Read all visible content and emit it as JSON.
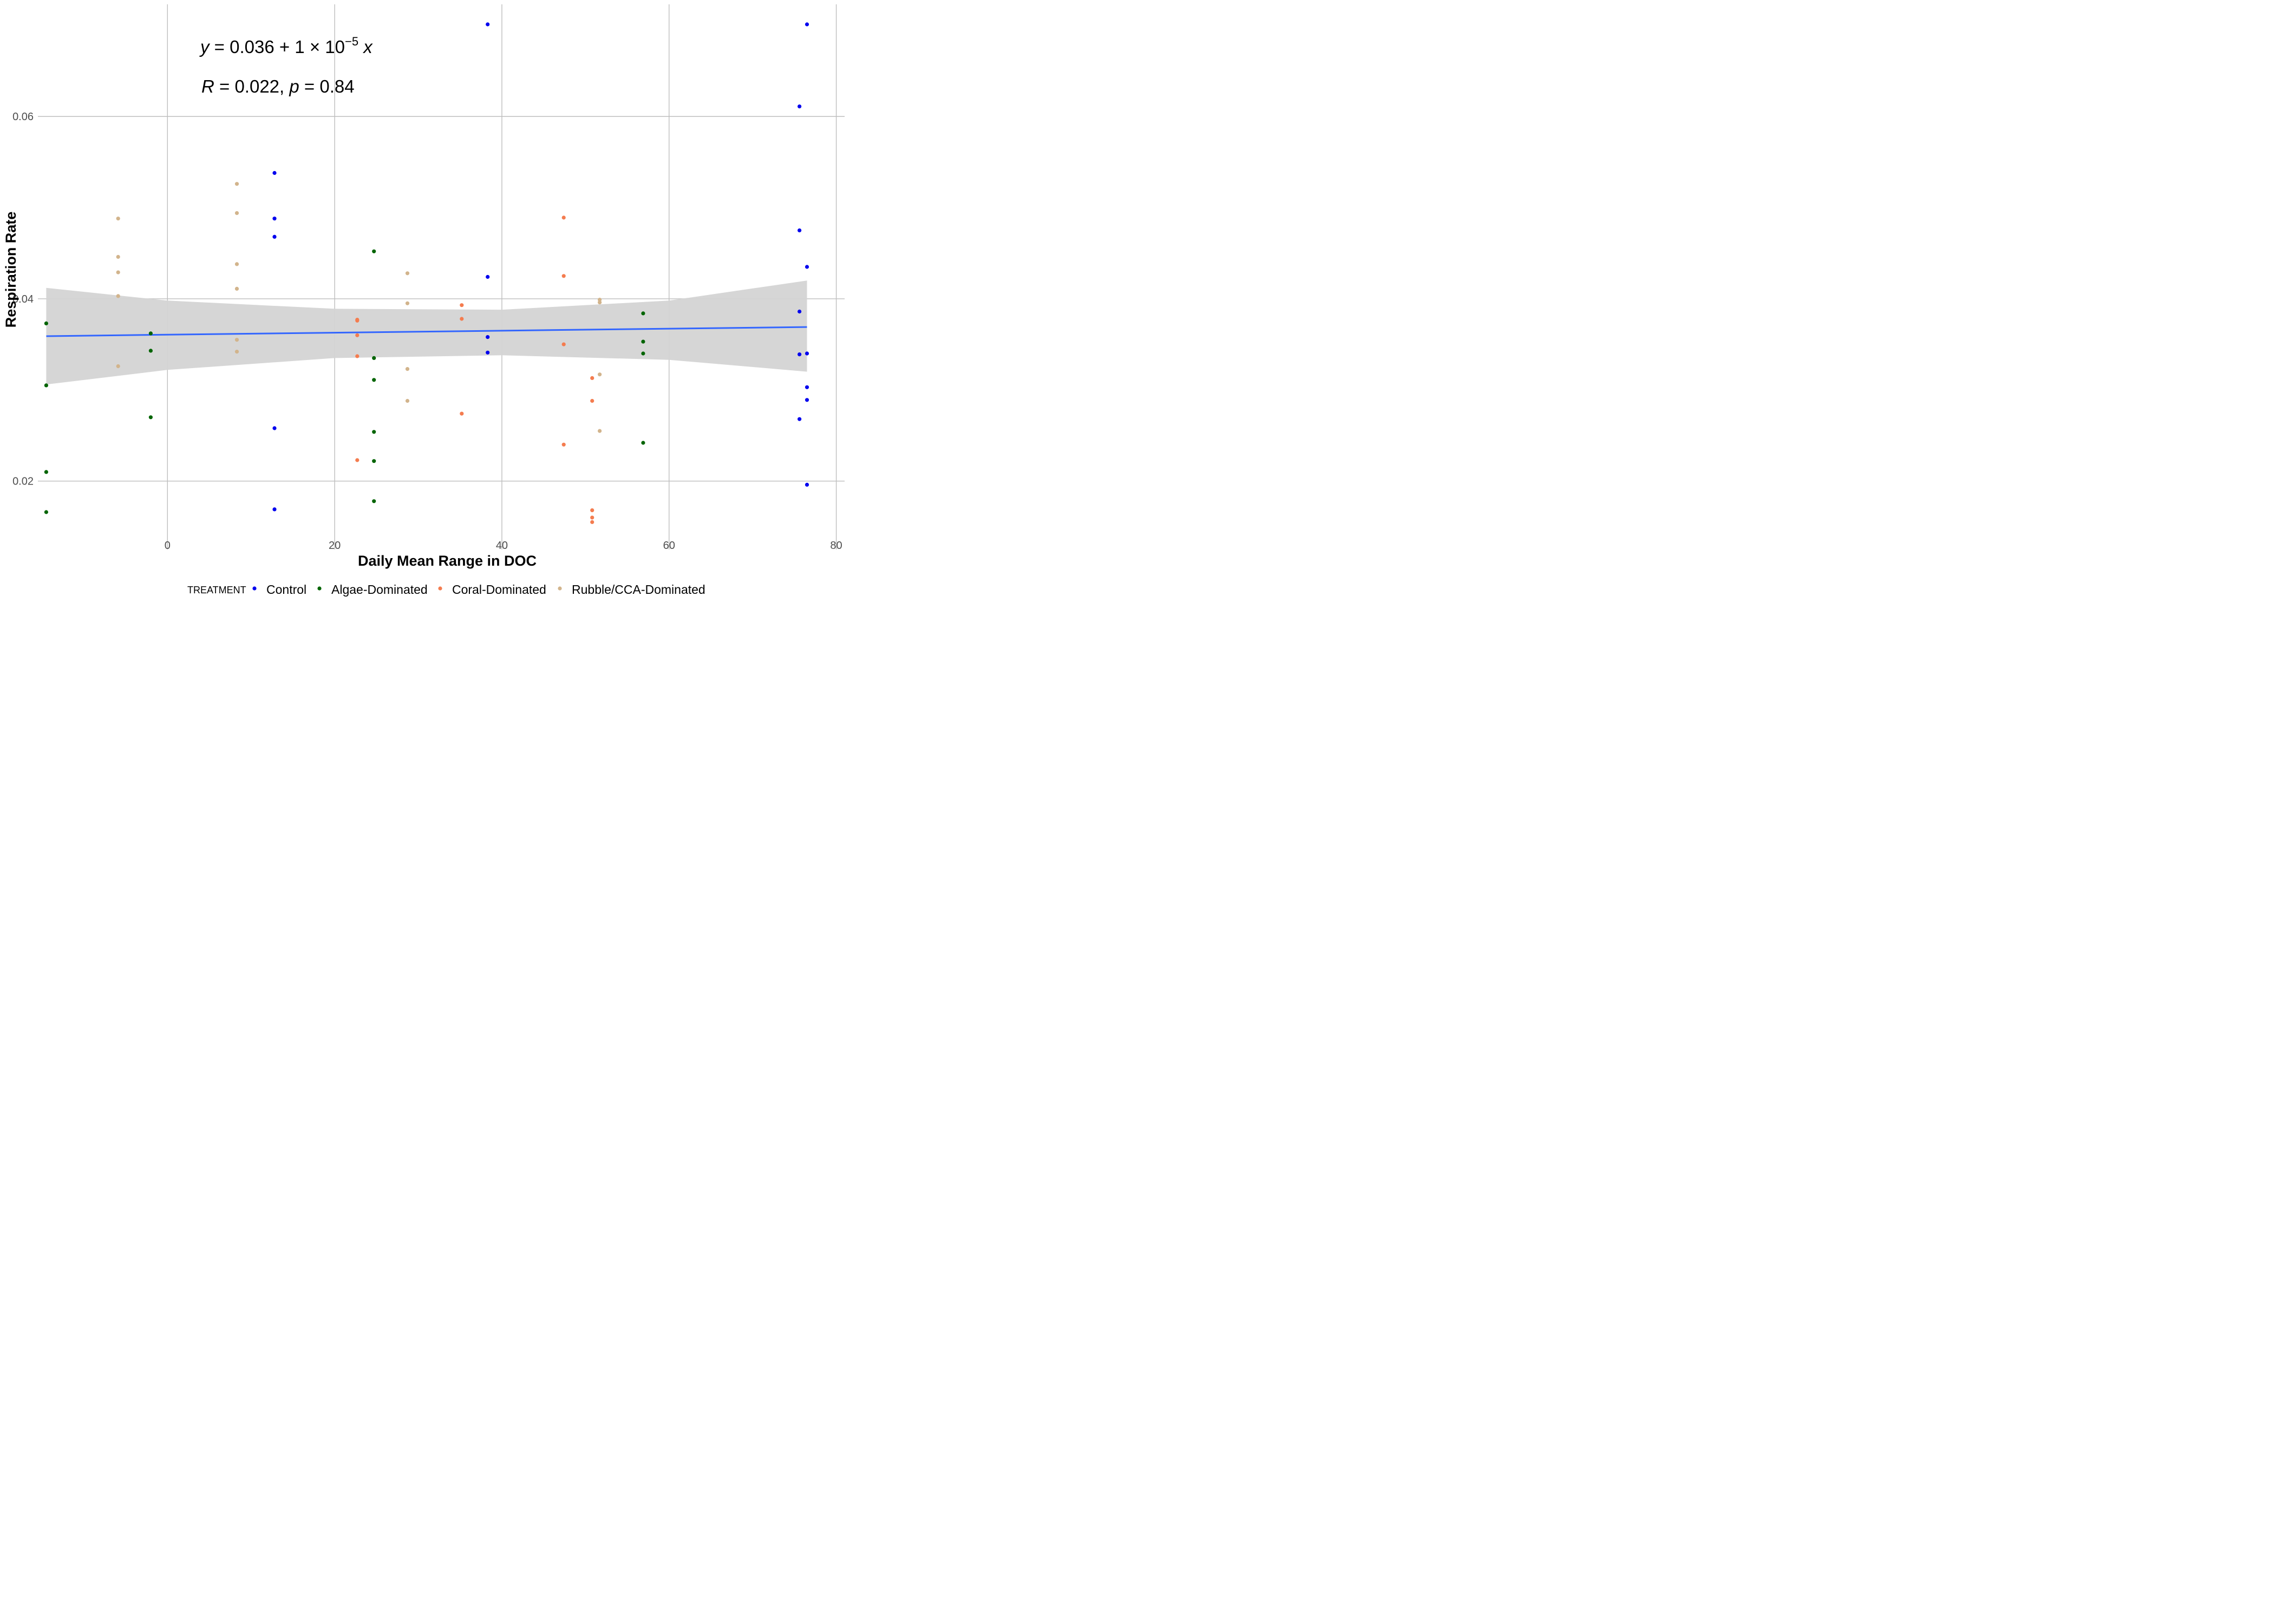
{
  "chart_data": {
    "type": "scatter",
    "xlabel": "Daily Mean Range in DOC",
    "ylabel": "Respiration Rate",
    "xlim": [
      -15.5,
      81
    ],
    "ylim": [
      0.0125,
      0.0723
    ],
    "x_ticks": [
      0,
      20,
      40,
      60,
      80
    ],
    "x_tick_labels": [
      "0",
      "20",
      "40",
      "60",
      "80"
    ],
    "y_ticks": [
      0.02,
      0.04,
      0.06
    ],
    "y_tick_labels": [
      "0.02",
      "0.04",
      "0.06"
    ],
    "grid": true,
    "annotation": {
      "equation": {
        "y": "y",
        "eq1": " = 0.036 + 1 × 10",
        "exp": "−5",
        "x": " x"
      },
      "stats": {
        "R": "R",
        "eq2": " = 0.022, ",
        "p": "p",
        "eq3": " = 0.84"
      }
    },
    "legend": {
      "title": "TREATMENT",
      "position": "bottom",
      "entries": [
        "Control",
        "Algae-Dominated",
        "Coral-Dominated",
        "Rubble/CCA-Dominated"
      ]
    },
    "colors": {
      "Control": "#0000ee",
      "Algae-Dominated": "#006400",
      "Coral-Dominated": "#f47c4f",
      "Rubble/CCA-Dominated": "#d2b48c",
      "fit_line": "#3366ff",
      "ci_band": "#d4d4d4",
      "grid": "#bebebe"
    },
    "fit": {
      "x": [
        -14.5,
        76.5
      ],
      "y": [
        0.0359,
        0.0369
      ],
      "ci_x": [
        -14.5,
        0,
        20,
        40,
        60,
        76.5
      ],
      "ci_lower": [
        0.0306,
        0.0322,
        0.0335,
        0.0338,
        0.0333,
        0.032
      ],
      "ci_upper": [
        0.0412,
        0.0398,
        0.0389,
        0.0388,
        0.0398,
        0.042
      ]
    },
    "series": [
      {
        "name": "Control",
        "points": [
          [
            12.8,
            0.0538
          ],
          [
            12.8,
            0.0488
          ],
          [
            12.8,
            0.0468
          ],
          [
            12.8,
            0.0258
          ],
          [
            12.8,
            0.0169
          ],
          [
            38.3,
            0.0701
          ],
          [
            38.3,
            0.0424
          ],
          [
            38.3,
            0.0358
          ],
          [
            38.3,
            0.0341
          ],
          [
            75.6,
            0.0611
          ],
          [
            75.6,
            0.0475
          ],
          [
            75.6,
            0.0386
          ],
          [
            75.6,
            0.0339
          ],
          [
            75.6,
            0.0268
          ],
          [
            76.5,
            0.0701
          ],
          [
            76.5,
            0.0435
          ],
          [
            76.5,
            0.034
          ],
          [
            76.5,
            0.0303
          ],
          [
            76.5,
            0.0289
          ],
          [
            76.5,
            0.0196
          ]
        ]
      },
      {
        "name": "Algae-Dominated",
        "points": [
          [
            -14.5,
            0.0373
          ],
          [
            -14.5,
            0.0305
          ],
          [
            -14.5,
            0.021
          ],
          [
            -14.5,
            0.0166
          ],
          [
            -2.0,
            0.0362
          ],
          [
            -2.0,
            0.0343
          ],
          [
            -2.0,
            0.027
          ],
          [
            24.7,
            0.0452
          ],
          [
            24.7,
            0.0335
          ],
          [
            24.7,
            0.0311
          ],
          [
            24.7,
            0.0254
          ],
          [
            24.7,
            0.0222
          ],
          [
            24.7,
            0.0178
          ],
          [
            56.9,
            0.0384
          ],
          [
            56.9,
            0.0353
          ],
          [
            56.9,
            0.034
          ],
          [
            56.9,
            0.0242
          ]
        ]
      },
      {
        "name": "Coral-Dominated",
        "points": [
          [
            22.7,
            0.0377
          ],
          [
            22.7,
            0.0376
          ],
          [
            22.7,
            0.036
          ],
          [
            22.7,
            0.0337
          ],
          [
            22.7,
            0.0223
          ],
          [
            35.2,
            0.0393
          ],
          [
            35.2,
            0.0378
          ],
          [
            35.2,
            0.0274
          ],
          [
            47.4,
            0.0489
          ],
          [
            47.4,
            0.0425
          ],
          [
            47.4,
            0.035
          ],
          [
            47.4,
            0.024
          ],
          [
            50.8,
            0.0313
          ],
          [
            50.8,
            0.0288
          ],
          [
            50.8,
            0.0168
          ],
          [
            50.8,
            0.016
          ],
          [
            50.8,
            0.0155
          ]
        ]
      },
      {
        "name": "Rubble/CCA-Dominated",
        "points": [
          [
            -5.9,
            0.0488
          ],
          [
            -5.9,
            0.0446
          ],
          [
            -5.9,
            0.0429
          ],
          [
            -5.9,
            0.0403
          ],
          [
            -5.9,
            0.0326
          ],
          [
            8.3,
            0.0526
          ],
          [
            8.3,
            0.0494
          ],
          [
            8.3,
            0.0438
          ],
          [
            8.3,
            0.0411
          ],
          [
            8.3,
            0.0355
          ],
          [
            8.3,
            0.0342
          ],
          [
            28.7,
            0.0428
          ],
          [
            28.7,
            0.0395
          ],
          [
            28.7,
            0.0323
          ],
          [
            28.7,
            0.0288
          ],
          [
            51.7,
            0.0399
          ],
          [
            51.7,
            0.0396
          ],
          [
            51.7,
            0.0317
          ],
          [
            51.7,
            0.0255
          ]
        ]
      }
    ]
  }
}
